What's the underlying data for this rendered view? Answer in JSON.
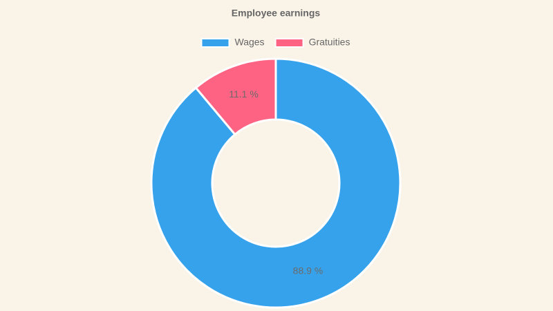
{
  "chart_data": {
    "type": "doughnut",
    "title": "Employee earnings",
    "categories": [
      "Wages",
      "Gratuities"
    ],
    "values": [
      88.9,
      11.1
    ],
    "value_labels": [
      "88.9 %",
      "11.1 %"
    ],
    "colors": [
      "#36a2eb",
      "#ff6384"
    ],
    "legend": "top"
  }
}
